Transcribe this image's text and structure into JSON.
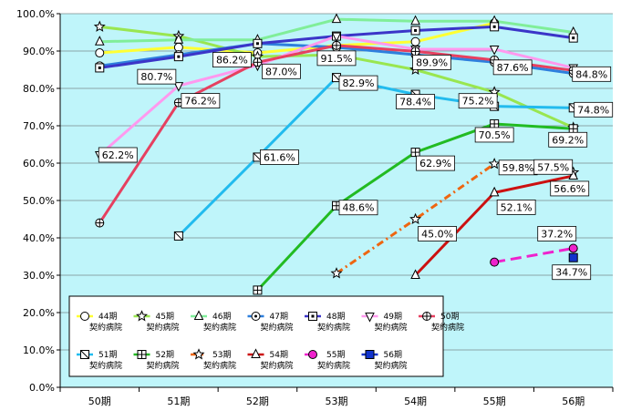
{
  "chart_data": {
    "type": "line",
    "categories": [
      "50期",
      "51期",
      "52期",
      "53期",
      "54期",
      "55期",
      "56期"
    ],
    "ylim": [
      0,
      100
    ],
    "ytick_step": 10,
    "ytick_suffix": "%",
    "grid": true,
    "plot_background": "#bff5fa",
    "legend_position": "bottom-left",
    "series": [
      {
        "name": "44期\n契約病院",
        "color": "#ffff33",
        "width": 3,
        "dash": "",
        "marker": "circle-open",
        "values": [
          89.5,
          91.0,
          89.5,
          91.5,
          92.5,
          97.5,
          null
        ]
      },
      {
        "name": "45期\n契約病院",
        "color": "#99e650",
        "width": 3,
        "dash": "",
        "marker": "star",
        "values": [
          96.5,
          94.0,
          88.5,
          89.0,
          85.0,
          79.0,
          69.5
        ]
      },
      {
        "name": "46期\n契約病院",
        "color": "#80ee99",
        "width": 3,
        "dash": "",
        "marker": "triangle-open",
        "values": [
          92.5,
          93.0,
          93.0,
          98.5,
          98.0,
          98.0,
          95.0
        ]
      },
      {
        "name": "47期\n契約病院",
        "color": "#2e7fdd",
        "width": 3,
        "dash": "",
        "marker": "circle-dot",
        "values": [
          86.0,
          89.0,
          92.0,
          91.0,
          89.0,
          87.0,
          84.0
        ]
      },
      {
        "name": "48期\n契約病院",
        "color": "#3b35c8",
        "width": 3,
        "dash": "",
        "marker": "square-dot",
        "values": [
          85.5,
          88.5,
          92.0,
          94.0,
          95.5,
          96.5,
          93.5
        ]
      },
      {
        "name": "49期\n契約病院",
        "color": "#ff99ee",
        "width": 3,
        "dash": "",
        "marker": "triangle-down-open",
        "values": [
          62.2,
          80.7,
          86.2,
          94.0,
          90.5,
          90.5,
          85.5
        ]
      },
      {
        "name": "50期\n契約病院",
        "color": "#e64060",
        "width": 3,
        "dash": "",
        "marker": "circle-cross",
        "values": [
          44.0,
          76.2,
          87.0,
          91.5,
          89.9,
          87.6,
          84.8
        ]
      },
      {
        "name": "51期\n契約病院",
        "color": "#22bbee",
        "width": 3,
        "dash": "",
        "marker": "square-diag",
        "values": [
          null,
          40.5,
          61.6,
          82.9,
          78.4,
          75.2,
          74.8
        ]
      },
      {
        "name": "52期\n契約病院",
        "color": "#22bb22",
        "width": 3,
        "dash": "",
        "marker": "square-cross",
        "values": [
          null,
          null,
          26.0,
          48.6,
          62.9,
          70.5,
          69.2
        ]
      },
      {
        "name": "53期\n契約病院",
        "color": "#ee6611",
        "width": 3,
        "dash": "8,4,2,4",
        "marker": "star",
        "values": [
          null,
          null,
          null,
          30.5,
          45.0,
          59.8,
          57.5
        ]
      },
      {
        "name": "54期\n契約病院",
        "color": "#cc1111",
        "width": 3,
        "dash": "",
        "marker": "triangle-open",
        "values": [
          null,
          null,
          null,
          null,
          30.0,
          52.1,
          56.6
        ]
      },
      {
        "name": "55期\n契約病院",
        "color": "#ee22cc",
        "width": 3,
        "dash": "12,6",
        "marker": "circle-filled",
        "values": [
          null,
          null,
          null,
          null,
          null,
          33.5,
          37.2
        ]
      },
      {
        "name": "56期\n契約病院",
        "color": "#1133cc",
        "width": 3,
        "dash": "",
        "marker": "square-filled",
        "values": [
          null,
          null,
          null,
          null,
          null,
          null,
          34.7
        ]
      }
    ],
    "annotations": [
      {
        "text": "62.2%",
        "category": "50期",
        "y": 62.2
      },
      {
        "text": "80.7%",
        "category": "51期",
        "y": 80.7
      },
      {
        "text": "76.2%",
        "category": "51期",
        "y": 76.2
      },
      {
        "text": "86.2%",
        "category": "52期",
        "y": 86.2
      },
      {
        "text": "87.0%",
        "category": "52期",
        "y": 87.0
      },
      {
        "text": "61.6%",
        "category": "52期",
        "y": 61.6
      },
      {
        "text": "91.5%",
        "category": "53期",
        "y": 91.5
      },
      {
        "text": "82.9%",
        "category": "53期",
        "y": 82.9
      },
      {
        "text": "48.6%",
        "category": "53期",
        "y": 48.6
      },
      {
        "text": "89.9%",
        "category": "54期",
        "y": 89.9
      },
      {
        "text": "78.4%",
        "category": "54期",
        "y": 78.4
      },
      {
        "text": "62.9%",
        "category": "54期",
        "y": 62.9
      },
      {
        "text": "45.0%",
        "category": "54期",
        "y": 45.0
      },
      {
        "text": "87.6%",
        "category": "55期",
        "y": 87.6
      },
      {
        "text": "75.2%",
        "category": "55期",
        "y": 75.2
      },
      {
        "text": "70.5%",
        "category": "55期",
        "y": 70.5
      },
      {
        "text": "59.8%",
        "category": "55期",
        "y": 59.8
      },
      {
        "text": "52.1%",
        "category": "55期",
        "y": 52.1
      },
      {
        "text": "84.8%",
        "category": "56期",
        "y": 84.8
      },
      {
        "text": "74.8%",
        "category": "56期",
        "y": 74.8
      },
      {
        "text": "69.2%",
        "category": "56期",
        "y": 69.2
      },
      {
        "text": "57.5%",
        "category": "56期",
        "y": 57.5
      },
      {
        "text": "56.6%",
        "category": "56期",
        "y": 56.6
      },
      {
        "text": "37.2%",
        "category": "56期",
        "y": 37.2
      },
      {
        "text": "34.7%",
        "category": "56期",
        "y": 34.7
      }
    ]
  }
}
